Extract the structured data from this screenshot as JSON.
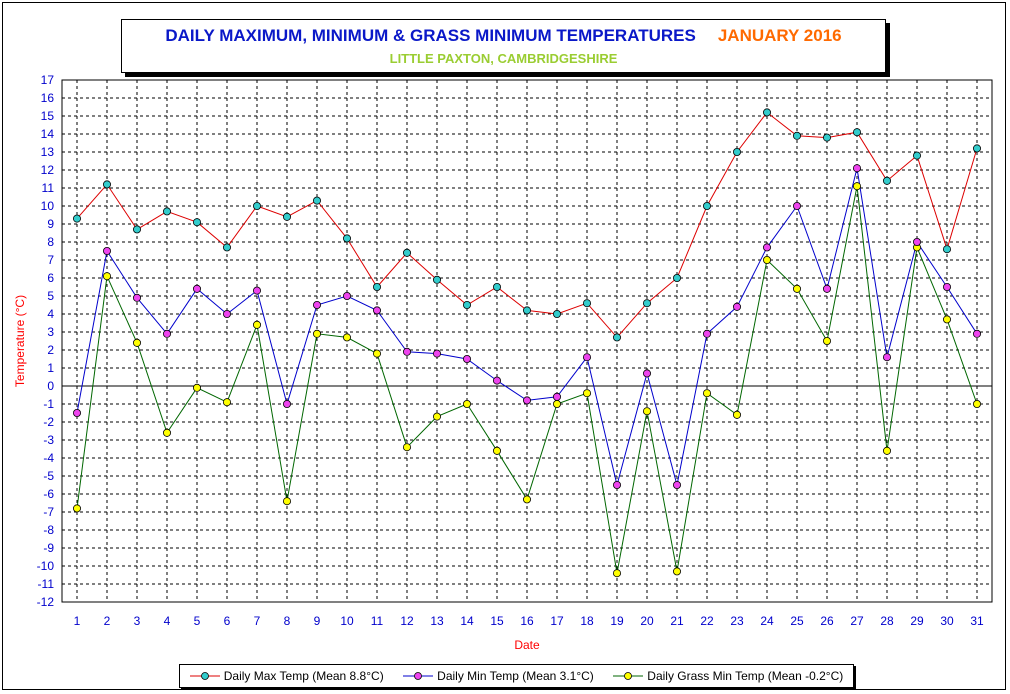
{
  "title": {
    "main": "DAILY MAXIMUM, MINIMUM & GRASS MINIMUM TEMPERATURES",
    "month": "JANUARY 2016",
    "subtitle": "LITTLE PAXTON, CAMBRIDGESHIRE"
  },
  "colors": {
    "max_line": "#dd0000",
    "max_marker": "#33cccc",
    "min_line": "#0000cc",
    "min_marker": "#ee44ee",
    "grass_line": "#006600",
    "grass_marker": "#ffff00",
    "axis_text": "#0000cc",
    "label_text": "#ff0000"
  },
  "chart_data": {
    "type": "line",
    "xlabel": "Date",
    "ylabel": "Temperature (°C)",
    "ylim": [
      -12,
      17
    ],
    "xlim": [
      1,
      31
    ],
    "grid": true,
    "legend_position": "bottom",
    "x": [
      1,
      2,
      3,
      4,
      5,
      6,
      7,
      8,
      9,
      10,
      11,
      12,
      13,
      14,
      15,
      16,
      17,
      18,
      19,
      20,
      21,
      22,
      23,
      24,
      25,
      26,
      27,
      28,
      29,
      30,
      31
    ],
    "series": [
      {
        "name": "Daily Max Temp (Mean 8.8°C)",
        "values": [
          9.3,
          11.2,
          8.7,
          9.7,
          9.1,
          7.7,
          10.0,
          9.4,
          10.3,
          8.2,
          5.5,
          7.4,
          5.9,
          4.5,
          5.5,
          4.2,
          4.0,
          4.6,
          2.7,
          4.6,
          6.0,
          10.0,
          13.0,
          15.2,
          13.9,
          13.8,
          14.1,
          11.4,
          12.8,
          7.6,
          13.2
        ]
      },
      {
        "name": "Daily Min Temp (Mean 3.1°C)",
        "values": [
          -1.5,
          7.5,
          4.9,
          2.9,
          5.4,
          4.0,
          5.3,
          -1.0,
          4.5,
          5.0,
          4.2,
          1.9,
          1.8,
          1.5,
          0.3,
          -0.8,
          -0.6,
          1.6,
          -5.5,
          0.7,
          -5.5,
          2.9,
          4.4,
          7.7,
          10.0,
          5.4,
          12.1,
          1.6,
          8.0,
          5.5,
          2.9
        ]
      },
      {
        "name": "Daily Grass Min Temp (Mean -0.2°C)",
        "values": [
          -6.8,
          6.1,
          2.4,
          -2.6,
          -0.1,
          -0.9,
          3.4,
          -6.4,
          2.9,
          2.7,
          1.8,
          -3.4,
          -1.7,
          -1.0,
          -3.6,
          -6.3,
          -1.0,
          -0.4,
          -10.4,
          -1.4,
          -10.3,
          -0.4,
          -1.6,
          7.0,
          5.4,
          2.5,
          11.1,
          -3.6,
          7.7,
          3.7,
          -1.0
        ]
      }
    ]
  }
}
